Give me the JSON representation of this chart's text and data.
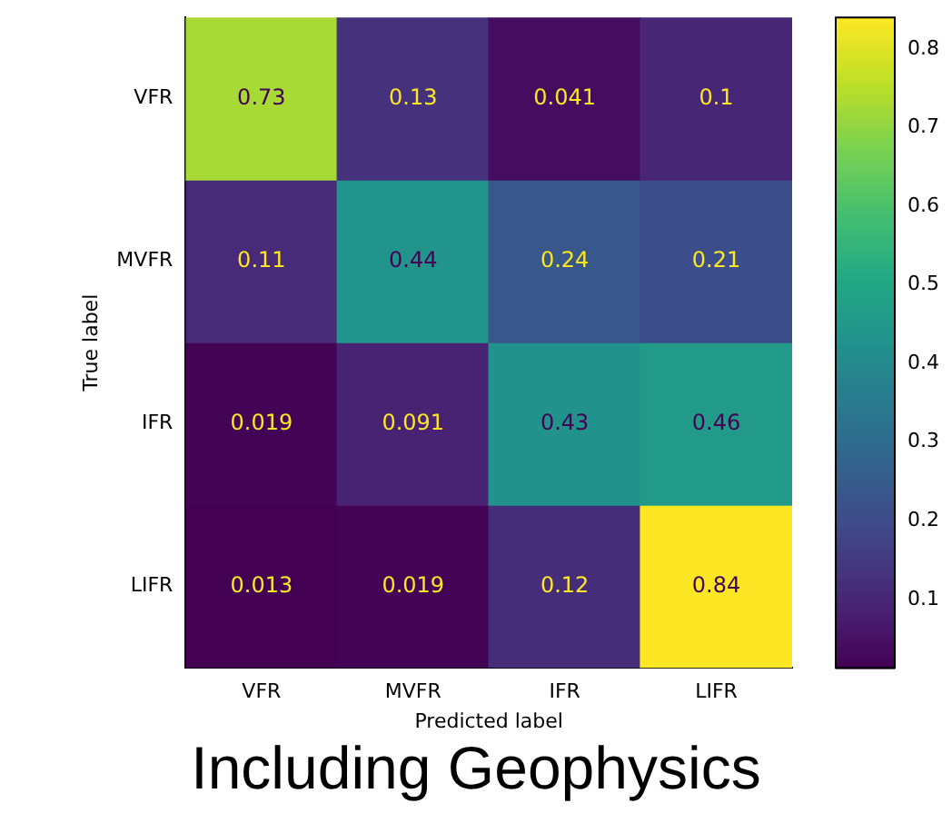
{
  "chart_data": {
    "type": "heatmap",
    "xlabel": "Predicted label",
    "ylabel": "True label",
    "categories": [
      "VFR",
      "MVFR",
      "IFR",
      "LIFR"
    ],
    "y_categories": [
      "VFR",
      "MVFR",
      "IFR",
      "LIFR"
    ],
    "cells": [
      [
        0.73,
        0.13,
        0.041,
        0.1
      ],
      [
        0.11,
        0.44,
        0.24,
        0.21
      ],
      [
        0.019,
        0.091,
        0.43,
        0.46
      ],
      [
        0.013,
        0.019,
        0.12,
        0.84
      ]
    ],
    "data_labels": true,
    "clim": [
      0.013,
      0.84
    ],
    "cticks": [
      0.1,
      0.2,
      0.3,
      0.4,
      0.5,
      0.6,
      0.7,
      0.8
    ],
    "legend": false,
    "grid": false,
    "annotations": [
      "Including Geophysics"
    ]
  }
}
